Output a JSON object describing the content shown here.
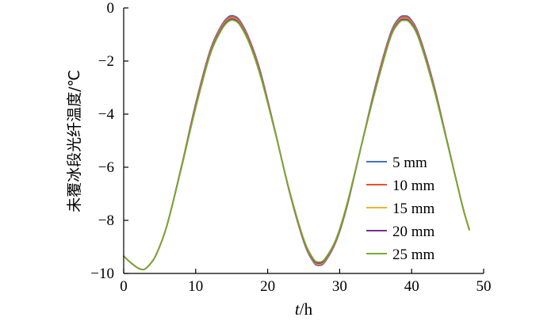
{
  "chart_data": {
    "type": "line",
    "title": "",
    "xlabel_italic": "t",
    "xlabel_unit": "/h",
    "ylabel": "未覆冰段光纤温度/℃",
    "xlim": [
      0,
      50
    ],
    "ylim": [
      -10,
      0
    ],
    "xticks": [
      "0",
      "10",
      "20",
      "30",
      "40",
      "50"
    ],
    "yticks": [
      "0",
      "−2",
      "−4",
      "−6",
      "−8",
      "−10"
    ],
    "legend_position": "right",
    "grid": false,
    "x": [
      0,
      1,
      2,
      2.8,
      3.5,
      4.5,
      6,
      8,
      10,
      12,
      13.5,
      14.5,
      15.3,
      16.2,
      17.5,
      19,
      21,
      23,
      25,
      26.3,
      27.1,
      28,
      29.5,
      31,
      33,
      35,
      37,
      38.2,
      39,
      39.8,
      41,
      43,
      45,
      47,
      48
    ],
    "series": [
      {
        "name": "5 mm",
        "color": "#4472c4",
        "values": [
          -9.35,
          -9.6,
          -9.8,
          -9.85,
          -9.7,
          -9.3,
          -8.2,
          -6.0,
          -3.6,
          -1.6,
          -0.7,
          -0.35,
          -0.3,
          -0.5,
          -1.2,
          -2.4,
          -4.6,
          -6.9,
          -8.8,
          -9.55,
          -9.7,
          -9.55,
          -8.8,
          -7.5,
          -5.2,
          -2.9,
          -1.0,
          -0.4,
          -0.3,
          -0.4,
          -1.0,
          -2.8,
          -5.1,
          -7.4,
          -8.35
        ]
      },
      {
        "name": "10 mm",
        "color": "#ed4e2a",
        "values": [
          -9.35,
          -9.6,
          -9.8,
          -9.85,
          -9.7,
          -9.3,
          -8.2,
          -6.0,
          -3.65,
          -1.65,
          -0.75,
          -0.4,
          -0.35,
          -0.55,
          -1.25,
          -2.45,
          -4.6,
          -6.9,
          -8.78,
          -9.52,
          -9.67,
          -9.52,
          -8.78,
          -7.48,
          -5.2,
          -2.95,
          -1.05,
          -0.45,
          -0.35,
          -0.45,
          -1.05,
          -2.85,
          -5.1,
          -7.4,
          -8.35
        ]
      },
      {
        "name": "15 mm",
        "color": "#f2b134",
        "values": [
          -9.35,
          -9.6,
          -9.8,
          -9.85,
          -9.7,
          -9.3,
          -8.2,
          -6.02,
          -3.7,
          -1.7,
          -0.8,
          -0.45,
          -0.4,
          -0.6,
          -1.3,
          -2.5,
          -4.62,
          -6.88,
          -8.75,
          -9.5,
          -9.64,
          -9.5,
          -8.75,
          -7.45,
          -5.2,
          -3.0,
          -1.1,
          -0.5,
          -0.4,
          -0.5,
          -1.1,
          -2.9,
          -5.12,
          -7.4,
          -8.35
        ]
      },
      {
        "name": "20 mm",
        "color": "#7b2d8e",
        "values": [
          -9.35,
          -9.6,
          -9.8,
          -9.85,
          -9.7,
          -9.3,
          -8.2,
          -6.03,
          -3.73,
          -1.73,
          -0.83,
          -0.48,
          -0.43,
          -0.63,
          -1.33,
          -2.53,
          -4.63,
          -6.87,
          -8.73,
          -9.47,
          -9.61,
          -9.47,
          -8.73,
          -7.43,
          -5.2,
          -3.03,
          -1.13,
          -0.53,
          -0.43,
          -0.53,
          -1.13,
          -2.93,
          -5.13,
          -7.4,
          -8.35
        ]
      },
      {
        "name": "25 mm",
        "color": "#77ac30",
        "values": [
          -9.35,
          -9.6,
          -9.8,
          -9.85,
          -9.7,
          -9.3,
          -8.2,
          -6.05,
          -3.77,
          -1.77,
          -0.87,
          -0.52,
          -0.47,
          -0.67,
          -1.37,
          -2.57,
          -4.65,
          -6.85,
          -8.7,
          -9.43,
          -9.57,
          -9.43,
          -8.7,
          -7.4,
          -5.2,
          -3.07,
          -1.17,
          -0.57,
          -0.47,
          -0.57,
          -1.17,
          -2.97,
          -5.15,
          -7.4,
          -8.35
        ]
      }
    ]
  }
}
